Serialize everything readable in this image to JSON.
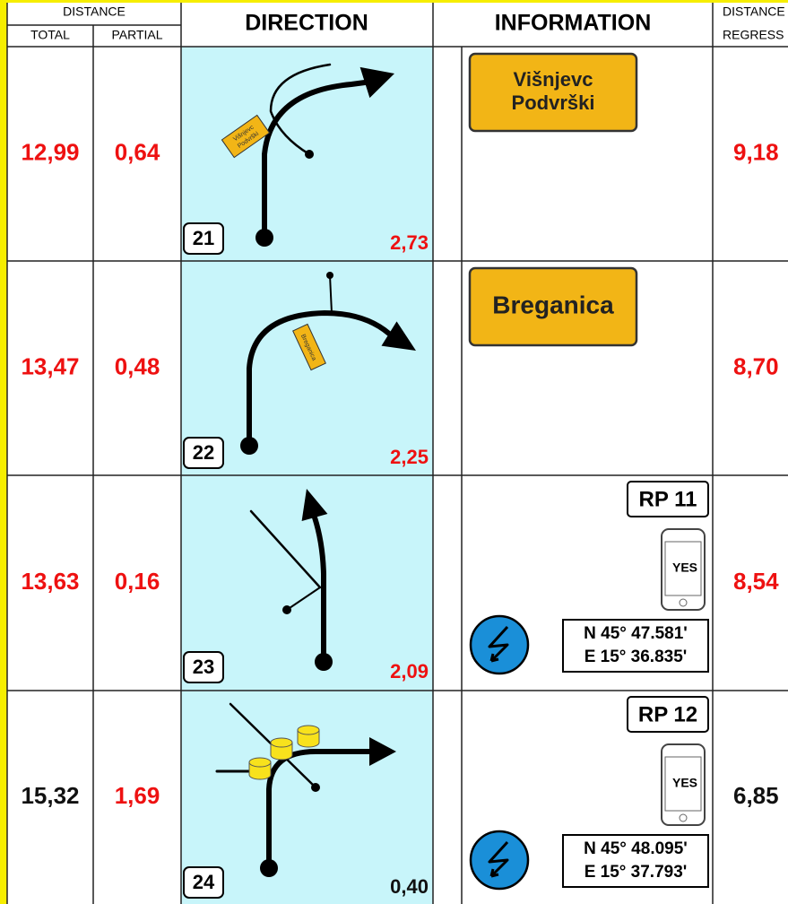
{
  "header": {
    "distance": "DISTANCE",
    "total": "TOTAL",
    "partial": "PARTIAL",
    "direction": "DIRECTION",
    "information": "INFORMATION",
    "distance_regress": [
      "DISTANCE",
      "REGRESS"
    ]
  },
  "rows": [
    {
      "total": "12,99",
      "partial": "0,64",
      "number": "21",
      "next": "2,73",
      "regress": "9,18",
      "total_color": "#ee1111",
      "partial_color": "#ee1111",
      "next_color": "#ee1111",
      "regress_color": "#ee1111",
      "diagram_sign": [
        "Višnjevc",
        "Podvrški"
      ],
      "sign": [
        "Višnjevc",
        "Podvrški"
      ]
    },
    {
      "total": "13,47",
      "partial": "0,48",
      "number": "22",
      "next": "2,25",
      "regress": "8,70",
      "total_color": "#ee1111",
      "partial_color": "#ee1111",
      "next_color": "#ee1111",
      "regress_color": "#ee1111",
      "diagram_sign": [
        "Breganica"
      ],
      "sign": [
        "Breganica"
      ]
    },
    {
      "total": "13,63",
      "partial": "0,16",
      "number": "23",
      "next": "2,09",
      "regress": "8,54",
      "total_color": "#ee1111",
      "partial_color": "#ee1111",
      "next_color": "#ee1111",
      "regress_color": "#ee1111",
      "rp": "RP 11",
      "phone": "YES",
      "coords": [
        "N 45° 47.581'",
        "E 15° 36.835'"
      ]
    },
    {
      "total": "15,32",
      "partial": "1,69",
      "number": "24",
      "next": "0,40",
      "regress": "6,85",
      "total_color": "#111111",
      "partial_color": "#ee1111",
      "next_color": "#111111",
      "regress_color": "#111111",
      "rp": "RP 12",
      "phone": "YES",
      "coords": [
        "N 45° 48.095'",
        "E 15° 37.793'"
      ]
    }
  ]
}
